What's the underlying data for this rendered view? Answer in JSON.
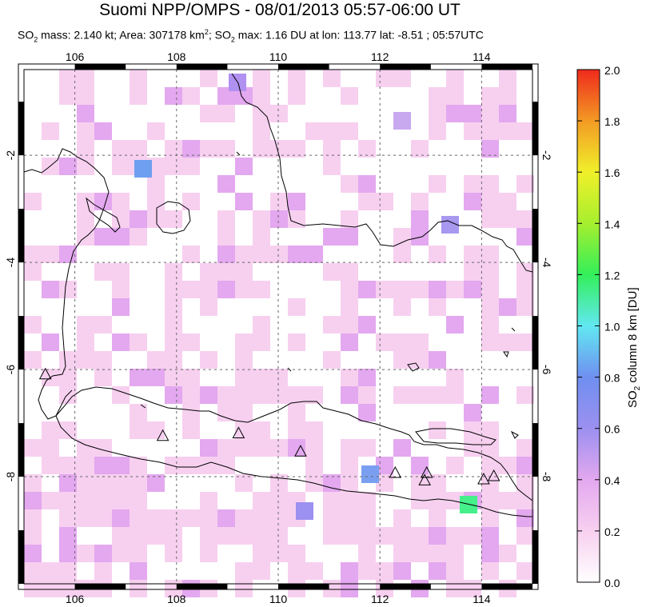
{
  "header": {
    "title": "Suomi NPP/OMPS - 08/01/2013 05:57-06:00 UT",
    "subtitle": {
      "so2_mass_label": "SO",
      "so2_mass_rest": " mass: 2.140 kt; Area: 307178 km",
      "area_sup": "2",
      "so2_max_label": "; SO",
      "so2_max_rest": " max: 1.16 DU at lon: 113.77 lat: -8.51 ; 05:57UTC",
      "sub": "2"
    }
  },
  "map": {
    "lon_range": [
      105.0,
      115.0
    ],
    "lat_range": [
      -10.0,
      -0.4
    ],
    "lon_ticks": [
      "106",
      "108",
      "110",
      "112",
      "114"
    ],
    "lat_ticks": [
      "-2",
      "-4",
      "-6",
      "-8"
    ],
    "lat_ticks_right": [
      "-2",
      "-4",
      "-6",
      "-8"
    ],
    "gridlines": true,
    "volcano_icon": "triangle-icon",
    "volcanoes": [
      {
        "lon": 105.42,
        "lat": -6.1
      },
      {
        "lon": 107.73,
        "lat": -7.25
      },
      {
        "lon": 109.22,
        "lat": -7.2
      },
      {
        "lon": 110.44,
        "lat": -7.54
      },
      {
        "lon": 112.3,
        "lat": -7.94
      },
      {
        "lon": 112.88,
        "lat": -8.08
      },
      {
        "lon": 112.92,
        "lat": -7.94
      },
      {
        "lon": 114.04,
        "lat": -8.06
      },
      {
        "lon": 114.24,
        "lat": -8.0
      }
    ]
  },
  "colorbar": {
    "label_main": "SO",
    "label_sub": "2",
    "label_rest": " column 8 km [DU]",
    "ticks": [
      "0.0",
      "0.2",
      "0.4",
      "0.6",
      "0.8",
      "1.0",
      "1.2",
      "1.4",
      "1.6",
      "1.8",
      "2.0"
    ],
    "colors": [
      "#ffffff",
      "#f7d0f0",
      "#e3a8ef",
      "#9c90f0",
      "#6f8ff0",
      "#62e8f2",
      "#33ef5a",
      "#a6ef2e",
      "#f0f02a",
      "#f39a24",
      "#ef2a1c"
    ]
  },
  "chart_data": {
    "type": "heatmap",
    "title": "Suomi NPP/OMPS - 08/01/2013 05:57-06:00 UT",
    "xlabel": "",
    "ylabel": "",
    "colorbar_label": "SO2 column 8 km [DU]",
    "xlim": [
      105.0,
      115.0
    ],
    "ylim": [
      -10.0,
      -0.4
    ],
    "clim": [
      0.0,
      2.0
    ],
    "max_value": 1.16,
    "max_location": {
      "lon": 113.77,
      "lat": -8.51
    }
  }
}
